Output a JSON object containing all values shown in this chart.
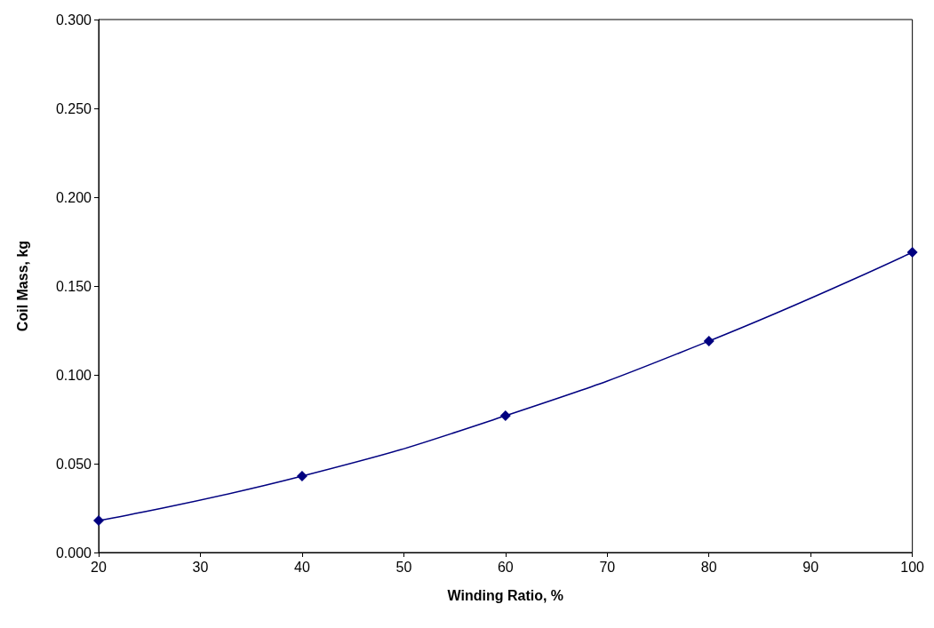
{
  "chart_data": {
    "type": "line",
    "xlabel": "Winding Ratio, %",
    "ylabel": "Coil Mass, kg",
    "x": [
      20,
      40,
      60,
      80,
      100
    ],
    "series": [
      {
        "color": "#000080",
        "values": [
          0.018,
          0.043,
          0.077,
          0.119,
          0.169
        ]
      }
    ],
    "xlim": [
      20,
      100
    ],
    "xticks": [
      20,
      30,
      40,
      50,
      60,
      70,
      80,
      90,
      100
    ],
    "ylim": [
      0,
      0.3
    ],
    "yticks": [
      {
        "value": 0,
        "label": "0.000"
      },
      {
        "value": 0.05,
        "label": "0.050"
      },
      {
        "value": 0.1,
        "label": "0.100"
      },
      {
        "value": 0.15,
        "label": "0.150"
      },
      {
        "value": 0.2,
        "label": "0.200"
      },
      {
        "value": 0.25,
        "label": "0.250"
      },
      {
        "value": 0.3,
        "label": "0.300"
      }
    ],
    "marker": "diamond",
    "line_style": "solid",
    "grid": false
  }
}
